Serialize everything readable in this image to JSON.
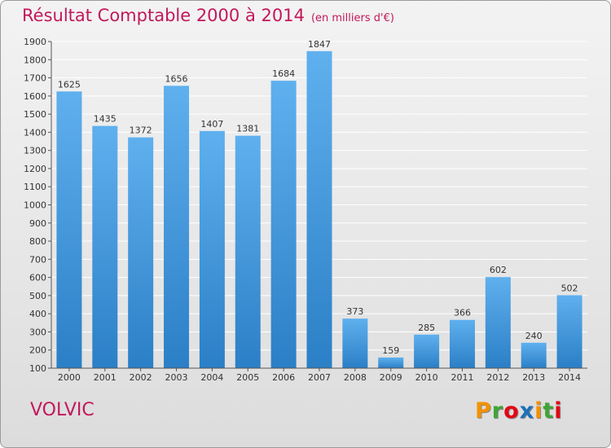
{
  "chart_data": {
    "type": "bar",
    "title": "Résultat Comptable 2000 à 2014",
    "subtitle": "(en milliers d'€)",
    "categories": [
      "2000",
      "2001",
      "2002",
      "2003",
      "2004",
      "2005",
      "2006",
      "2007",
      "2008",
      "2009",
      "2010",
      "2011",
      "2012",
      "2013",
      "2014"
    ],
    "values": [
      1625,
      1435,
      1372,
      1656,
      1407,
      1381,
      1684,
      1847,
      373,
      159,
      285,
      366,
      602,
      240,
      502
    ],
    "yticks": [
      100,
      200,
      300,
      400,
      500,
      600,
      700,
      800,
      900,
      1000,
      1100,
      1200,
      1300,
      1400,
      1500,
      1600,
      1700,
      1800,
      1900
    ],
    "ylim": [
      100,
      1900
    ],
    "grid": true,
    "xlabel": "",
    "ylabel": ""
  },
  "footer": {
    "location": "VOLVIC",
    "brand_letters": [
      "P",
      "r",
      "o",
      "x",
      "i",
      "t",
      "i"
    ]
  },
  "colors": {
    "title": "#c2185b",
    "bar_top": "#5fb0ee",
    "bar_bottom": "#2b7fc6",
    "brand": [
      "#f39200",
      "#3fa535",
      "#e30613",
      "#1d71b8",
      "#f39200",
      "#3fa535",
      "#e30613"
    ]
  }
}
